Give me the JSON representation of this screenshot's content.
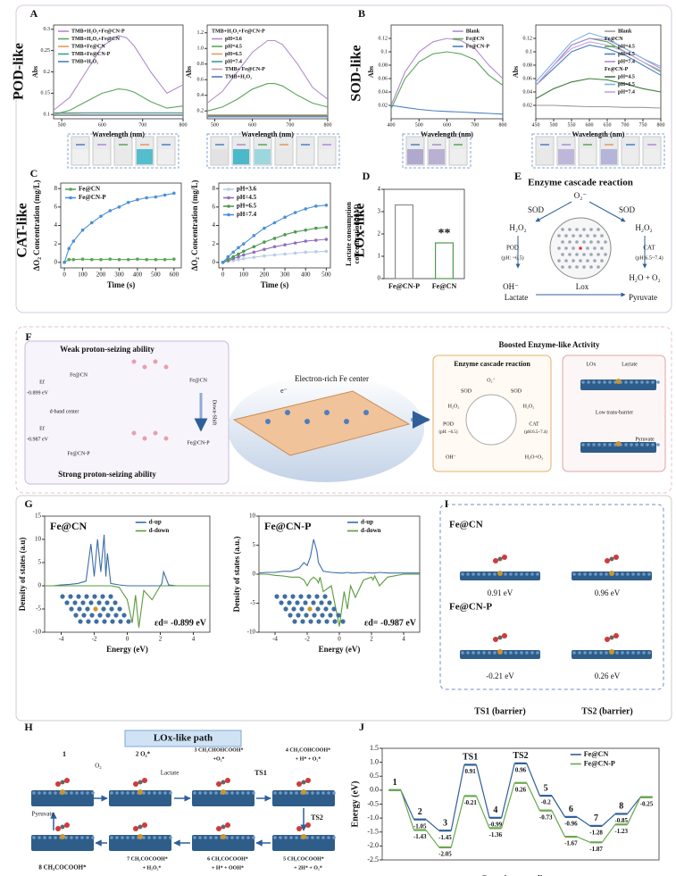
{
  "chart_data": [
    {
      "type": "line",
      "xlabel": "Wavelength (nm)",
      "ylabel": "Abs",
      "xlim": [
        480,
        800
      ],
      "ylim": [
        0.09,
        0.31
      ],
      "xticks": [
        500,
        600,
        700,
        800
      ],
      "yticks": [
        0.1,
        0.15,
        0.2,
        0.25,
        0.3
      ],
      "legend": "upper left",
      "x": [
        480,
        520,
        560,
        600,
        640,
        660,
        680,
        720,
        760,
        800
      ],
      "series": [
        {
          "name": "TMB+H₂O₂+Fe@CN-P",
          "color": "#b18bd0",
          "values": [
            0.11,
            0.14,
            0.2,
            0.26,
            0.285,
            0.28,
            0.26,
            0.2,
            0.15,
            0.17
          ]
        },
        {
          "name": "TMB+H₂O₂+Fe@CN",
          "color": "#5aa55a",
          "values": [
            0.1,
            0.11,
            0.13,
            0.15,
            0.16,
            0.158,
            0.152,
            0.13,
            0.115,
            0.12
          ]
        },
        {
          "name": "TMB+Fe@CN",
          "color": "#e39b5a",
          "values": [
            0.101,
            0.101,
            0.1,
            0.1,
            0.1,
            0.1,
            0.1,
            0.1,
            0.1,
            0.1
          ]
        },
        {
          "name": "TMB+Fe@CN-P",
          "color": "#3d9c9c",
          "values": [
            0.104,
            0.104,
            0.104,
            0.104,
            0.104,
            0.104,
            0.104,
            0.104,
            0.104,
            0.104
          ]
        },
        {
          "name": "TMB+H₂O₂",
          "color": "#4a7fc0",
          "values": [
            0.098,
            0.098,
            0.098,
            0.098,
            0.098,
            0.098,
            0.098,
            0.098,
            0.098,
            0.098
          ]
        }
      ]
    },
    {
      "type": "line",
      "xlabel": "Wavelength (nm)",
      "ylabel": "Abs",
      "xlim": [
        480,
        800
      ],
      "ylim": [
        0.1,
        1.3
      ],
      "xticks": [
        500,
        600,
        700,
        800
      ],
      "yticks": [
        0.2,
        0.4,
        0.6,
        0.8,
        {
          "value": 1,
          "label": "1.0"
        },
        1.2
      ],
      "legend": "upper left",
      "legend_title": "TMB+H₂O₂+Fe@CN-P",
      "x": [
        480,
        520,
        560,
        600,
        640,
        660,
        680,
        720,
        760,
        800
      ],
      "series": [
        {
          "name": "pH=3.6",
          "color": "#b18bd0",
          "values": [
            0.3,
            0.45,
            0.7,
            0.95,
            1.1,
            1.1,
            1.05,
            0.8,
            0.5,
            0.35
          ]
        },
        {
          "name": "pH=4.5",
          "color": "#5aa55a",
          "values": [
            0.2,
            0.25,
            0.35,
            0.48,
            0.55,
            0.55,
            0.52,
            0.4,
            0.3,
            0.25
          ]
        },
        {
          "name": "pH=6.5",
          "color": "#e39b5a",
          "values": [
            0.15,
            0.15,
            0.15,
            0.15,
            0.15,
            0.15,
            0.15,
            0.15,
            0.15,
            0.15
          ]
        },
        {
          "name": "pH=7.4",
          "color": "#3d9c9c",
          "values": [
            0.14,
            0.14,
            0.14,
            0.14,
            0.14,
            0.14,
            0.14,
            0.14,
            0.14,
            0.14
          ]
        },
        {
          "name": "TMB+ Fe@CN-P",
          "color": "#c8a0a0",
          "values": [
            0.13,
            0.13,
            0.13,
            0.13,
            0.13,
            0.13,
            0.13,
            0.13,
            0.13,
            0.13
          ]
        },
        {
          "name": "TMB+H₂O₂",
          "color": "#4a7fc0",
          "values": [
            0.125,
            0.125,
            0.125,
            0.125,
            0.125,
            0.125,
            0.125,
            0.125,
            0.125,
            0.125
          ]
        }
      ]
    },
    {
      "type": "line",
      "xlabel": "Wavelength (nm)",
      "ylabel": "Abs",
      "xlim": [
        400,
        800
      ],
      "ylim": [
        0,
        0.14
      ],
      "xticks": [
        400,
        500,
        600,
        700,
        800
      ],
      "yticks": [
        0.02,
        0.04,
        0.06,
        0.08,
        0.1,
        0.12
      ],
      "legend": "upper right",
      "x": [
        400,
        450,
        500,
        550,
        600,
        650,
        700,
        750,
        800
      ],
      "series": [
        {
          "name": "Blank",
          "color": "#b18bd0",
          "values": [
            0.02,
            0.07,
            0.1,
            0.115,
            0.12,
            0.117,
            0.105,
            0.08,
            0.06
          ]
        },
        {
          "name": "Fe@CN",
          "color": "#5aa55a",
          "values": [
            0.015,
            0.06,
            0.085,
            0.097,
            0.1,
            0.097,
            0.088,
            0.065,
            0.05
          ]
        },
        {
          "name": "Fe@CN-P",
          "color": "#4a7fc0",
          "values": [
            0.02,
            0.017,
            0.014,
            0.012,
            0.011,
            0.01,
            0.009,
            0.008,
            0.007
          ]
        }
      ]
    },
    {
      "type": "line",
      "xlabel": "Wavelength (nm)",
      "ylabel": "Abs",
      "xlim": [
        450,
        800
      ],
      "ylim": [
        0,
        0.14
      ],
      "xticks": [
        450,
        500,
        550,
        600,
        650,
        700,
        750,
        800
      ],
      "yticks": [
        0.02,
        0.04,
        0.06,
        0.08,
        0.1,
        0.12
      ],
      "legend": "upper right",
      "legend_groups": [
        "Fe@CN",
        "Fe@CN-P"
      ],
      "x": [
        450,
        500,
        550,
        600,
        650,
        700,
        750,
        800
      ],
      "series": [
        {
          "name": "Blank",
          "color": "#999999",
          "values": [
            0.02,
            0.02,
            0.019,
            0.018,
            0.018,
            0.017,
            0.017,
            0.016
          ]
        },
        {
          "name": "pH=4.5",
          "color": "#5aa55a",
          "values": [
            0.05,
            0.08,
            0.11,
            0.12,
            0.115,
            0.1,
            0.085,
            0.07
          ]
        },
        {
          "name": "pH=6.5",
          "color": "#4a7fc0",
          "values": [
            0.05,
            0.075,
            0.1,
            0.11,
            0.105,
            0.095,
            0.08,
            0.065
          ]
        },
        {
          "name": "pH=7.4",
          "color": "#b18bd0",
          "values": [
            0.05,
            0.08,
            0.11,
            0.12,
            0.118,
            0.105,
            0.09,
            0.075
          ]
        },
        {
          "name": "pH=4.5",
          "color": "#3d7a3d",
          "values": [
            0.03,
            0.045,
            0.055,
            0.06,
            0.058,
            0.052,
            0.045,
            0.04
          ]
        },
        {
          "name": "pH=6.5",
          "color": "#7fb3e0",
          "values": [
            0.055,
            0.085,
            0.115,
            0.128,
            0.12,
            0.105,
            0.09,
            0.078
          ]
        },
        {
          "name": "pH=7.4",
          "color": "#c9a0dc",
          "values": [
            0.05,
            0.08,
            0.105,
            0.115,
            0.11,
            0.1,
            0.085,
            0.072
          ]
        }
      ]
    },
    {
      "type": "line",
      "markers": true,
      "xlabel": "Time (s)",
      "ylabel": "ΔO₂ Concentration (mg/L)",
      "xlim": [
        -20,
        640
      ],
      "ylim": [
        -0.6,
        8.6
      ],
      "xticks": [
        0,
        100,
        200,
        300,
        400,
        500,
        600
      ],
      "yticks": [
        0,
        2,
        4,
        6,
        8
      ],
      "legend": "upper left",
      "x": [
        0,
        25,
        50,
        100,
        150,
        200,
        250,
        300,
        350,
        400,
        450,
        500,
        550,
        600
      ],
      "series": [
        {
          "name": "Fe@CN",
          "color": "#5aa55a",
          "values": [
            0,
            0.3,
            0.3,
            0.35,
            0.3,
            0.3,
            0.35,
            0.3,
            0.3,
            0.35,
            0.3,
            0.3,
            0.3,
            0.35
          ]
        },
        {
          "name": "Fe@CN-P",
          "color": "#4a90d9",
          "values": [
            0,
            1.5,
            2.3,
            3.5,
            4.3,
            5,
            5.6,
            6,
            6.5,
            6.8,
            7,
            7.1,
            7.3,
            7.5
          ]
        }
      ]
    },
    {
      "type": "line",
      "markers": true,
      "xlabel": "Time (s)",
      "ylabel": "ΔO₂ Concentration (mg/L)",
      "xlim": [
        -20,
        520
      ],
      "ylim": [
        -0.6,
        8.6
      ],
      "xticks": [
        0,
        100,
        200,
        300,
        400,
        500
      ],
      "yticks": [
        0,
        2,
        4,
        6,
        8
      ],
      "legend": "upper left",
      "x": [
        0,
        25,
        50,
        75,
        100,
        150,
        200,
        250,
        300,
        350,
        400,
        450,
        500
      ],
      "series": [
        {
          "name": "pH=3.6",
          "color": "#b9cde6",
          "values": [
            0,
            0.1,
            0.2,
            0.3,
            0.4,
            0.55,
            0.7,
            0.8,
            0.9,
            1,
            1.1,
            1.15,
            1.2
          ]
        },
        {
          "name": "pH=4.5",
          "color": "#8e6fc0",
          "values": [
            0,
            0.2,
            0.4,
            0.6,
            0.8,
            1.1,
            1.4,
            1.7,
            1.9,
            2.1,
            2.3,
            2.4,
            2.5
          ]
        },
        {
          "name": "pH=6.5",
          "color": "#4f9a4f",
          "values": [
            0,
            0.3,
            0.6,
            0.9,
            1.2,
            1.7,
            2.2,
            2.6,
            3,
            3.3,
            3.5,
            3.7,
            3.8
          ]
        },
        {
          "name": "pH=7.4",
          "color": "#4a90d9",
          "values": [
            0,
            0.6,
            1.1,
            1.6,
            2,
            2.9,
            3.7,
            4.3,
            4.9,
            5.4,
            5.8,
            6.1,
            6.2
          ]
        }
      ]
    },
    {
      "type": "bar",
      "ylabel": [
        "Lactate consumption",
        "concentration(mM)"
      ],
      "categories": [
        "Fe@CN-P",
        "Fe@CN"
      ],
      "values": [
        3.3,
        1.6
      ],
      "colors": [
        "#8a8a8a",
        "#4f9a4f"
      ],
      "ylim": [
        0,
        4
      ],
      "yticks": [
        0,
        1,
        2,
        3,
        4
      ],
      "annotation": "**"
    },
    {
      "type": "line",
      "title": "Fe@CN",
      "xlabel": "Energy (eV)",
      "ylabel": "Density of states (a.u)",
      "xlim": [
        -5,
        5
      ],
      "ylim": [
        -10,
        15
      ],
      "xticks": [
        -4,
        -2,
        0,
        2,
        4
      ],
      "yticks": [
        -10,
        -5,
        0,
        5,
        10,
        15
      ],
      "legend": "upper right",
      "annotation": "εd= -0.899 eV",
      "x": [
        -5,
        -4.5,
        -4,
        -3.5,
        -3,
        -2.5,
        -2.2,
        -2,
        -1.8,
        -1.6,
        -1.4,
        -1.3,
        -1.2,
        -1,
        -0.5,
        0,
        0.3,
        0.5,
        0.7,
        1,
        1.5,
        2,
        2.1,
        2.2,
        2.5,
        3,
        4,
        5
      ],
      "series": [
        {
          "name": "d-up",
          "color": "#3b6ea8",
          "values": [
            0,
            0,
            0.2,
            0.3,
            0.5,
            1,
            9,
            2,
            10,
            3,
            11,
            2,
            7,
            0.5,
            0.2,
            0,
            0,
            0,
            0,
            0,
            0,
            0,
            0.5,
            3,
            0.2,
            0,
            0,
            0
          ]
        },
        {
          "name": "d-down",
          "color": "#5a9a3a",
          "values": [
            0,
            0,
            0,
            0,
            0,
            0,
            0,
            0,
            0,
            0,
            0,
            0,
            0,
            0,
            -0.3,
            -3,
            -8,
            -2,
            -9,
            -1,
            -3,
            0,
            0,
            0,
            0,
            0,
            0,
            0
          ]
        }
      ]
    },
    {
      "type": "line",
      "title": "Fe@CN-P",
      "xlabel": "Energy (eV)",
      "ylabel": "Density of states (a.u.)",
      "xlim": [
        -5,
        5
      ],
      "ylim": [
        -10,
        10
      ],
      "xticks": [
        -4,
        -2,
        0,
        2,
        4
      ],
      "yticks": [
        -10,
        -5,
        0,
        5,
        10
      ],
      "legend": "upper right",
      "annotation": "εd= -0.987 eV",
      "x": [
        -5,
        -4.5,
        -4,
        -3.5,
        -3,
        -2.5,
        -2.2,
        -2,
        -1.8,
        -1.6,
        -1.4,
        -1.3,
        -1.2,
        -1,
        -0.5,
        0,
        0.3,
        0.5,
        0.7,
        1,
        1.5,
        2,
        2.1,
        2.2,
        2.5,
        3,
        4,
        5
      ],
      "series": [
        {
          "name": "d-up",
          "color": "#3b6ea8",
          "values": [
            0.2,
            0.3,
            0.3,
            0.5,
            0.5,
            1,
            2,
            1.5,
            3,
            6,
            4,
            2,
            1.5,
            0.5,
            0.3,
            0.2,
            0.2,
            0.3,
            0.2,
            0.2,
            0.3,
            0.2,
            0.2,
            0.2,
            0.3,
            0.2,
            0.2,
            0.2
          ]
        },
        {
          "name": "d-down",
          "color": "#5a9a3a",
          "values": [
            0,
            0,
            -0.2,
            -0.3,
            -0.5,
            -0.5,
            -1,
            -2,
            -1,
            -0.5,
            -1,
            -1.5,
            -0.5,
            -3,
            -2,
            -9,
            -3,
            -6,
            -2,
            -4,
            -1,
            -0.5,
            -1,
            -0.3,
            -2,
            -0.5,
            0,
            0
          ]
        }
      ]
    },
    {
      "type": "energy_profile",
      "xlabel": "Reaction coordinate",
      "ylabel": "Energy (eV)",
      "ylim": [
        -2.5,
        1.5
      ],
      "yticks": [
        1.5,
        {
          "value": 1,
          "label": "1.0"
        },
        0.5,
        {
          "value": 0,
          "label": "0.0"
        },
        -0.5,
        {
          "value": -1,
          "label": "-1.0"
        },
        -1.5,
        {
          "value": -2,
          "label": "-2.0"
        },
        -2.5
      ],
      "legend": "upper right",
      "categories": [
        "1",
        "2",
        "3",
        "TS1",
        "4",
        "TS2",
        "5",
        "6",
        "7",
        "8",
        null
      ],
      "series": [
        {
          "name": "Fe@CN",
          "color": "#2f5f9a",
          "values": [
            0,
            -1.05,
            -1.45,
            0.91,
            -0.99,
            0.96,
            -0.2,
            -0.96,
            -1.28,
            -0.85,
            -0.25
          ]
        },
        {
          "name": "Fe@CN-P",
          "color": "#6aa84f",
          "values": [
            0,
            -1.43,
            -2.05,
            -0.21,
            -1.36,
            0.26,
            -0.73,
            -1.67,
            -1.87,
            -1.23,
            -0.25
          ]
        }
      ]
    }
  ],
  "panel_letters": [
    "A",
    "B",
    "C",
    "D",
    "E",
    "F",
    "G",
    "H",
    "I",
    "J"
  ],
  "side_labels": [
    "POD-like",
    "SOD-like",
    "CAT-like",
    "LOx-like"
  ],
  "diagrams": {
    "E": {
      "texts": [
        "Enzyme cascade reaction",
        "O₂⁻",
        "SOD",
        "SOD",
        "H₂O₂",
        "H₂O₂",
        "POD",
        "(pH: ~6.5)",
        "CAT",
        "(pH:6.5~7.4)",
        "H₂O + O₂",
        "OH⁻",
        "Lactate",
        "Lox",
        "Pyruvate"
      ]
    },
    "F": {
      "texts": [
        "Weak proton-seizing ability",
        "Strong proton-seizing ability",
        "Fe@CN",
        "Ef",
        "-0.899 eV",
        "d-band center",
        "Ef",
        "-0.987 eV",
        "Fe@CN-P",
        "Fe@CN",
        "Down-Shift",
        "Fe@CN-P",
        "Electron-rich Fe center",
        "e⁻",
        "Boosted Enzyme-like Activity",
        "Enzyme cascade reaction",
        "O₂⁻",
        "SOD",
        "SOD",
        "H₂O₂",
        "H₂O₂",
        "POD",
        "(pH: ~6.5)",
        "CAT",
        "(pH:6.5~7.4)",
        "OH⁻",
        "H₂O+O₂",
        "LOx",
        "Lactate",
        "Low trans-barrier",
        "Pyruvate"
      ]
    },
    "I": {
      "texts": [
        "Fe@CN",
        "0.91 eV",
        "0.96 eV",
        "Fe@CN-P",
        "-0.21 eV",
        "0.26 eV",
        "TS1 (barrier)",
        "TS2 (barrier)"
      ]
    },
    "H": {
      "texts": [
        "LOx-like path",
        "1",
        "O₂",
        "2 O₂*",
        "3 CH₃CHOHCOOH*",
        "+O₂*",
        "Lactate",
        "4 CH₃COHCOOH*",
        "+ H* + O₂*",
        "TS1",
        "TS2",
        "Pyruvate",
        "8 CH₃COCOOH*",
        "7 CH₃COCOOH*",
        "+ H₂O₂*",
        "6 CH₃COCOOH*",
        "+ H* + OOH*",
        "5 CH₃COCOOH*",
        "+ 2H* + O₂*"
      ]
    }
  }
}
